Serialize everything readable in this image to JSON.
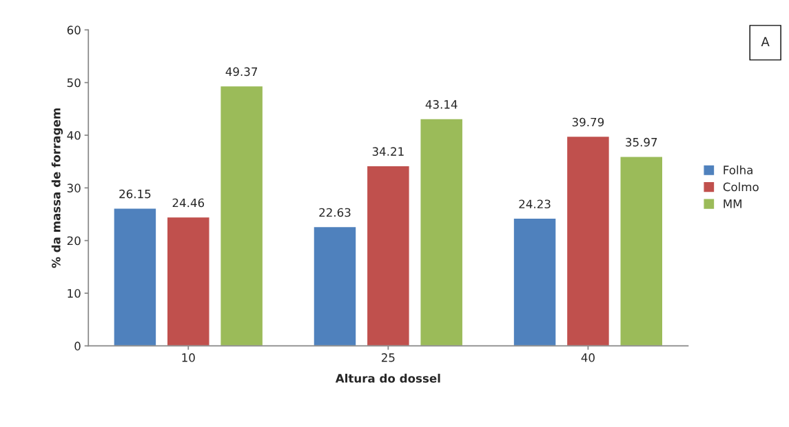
{
  "chart_data": {
    "type": "bar",
    "xlabel": "Altura do dossel",
    "ylabel": "% da massa de forragem",
    "categories": [
      "10",
      "25",
      "40"
    ],
    "series": [
      {
        "name": "Folha",
        "color": "#4f81bd",
        "values": [
          26.15,
          22.63,
          24.23
        ]
      },
      {
        "name": "Colmo",
        "color": "#c0504d",
        "values": [
          24.46,
          34.21,
          39.79
        ]
      },
      {
        "name": "MM",
        "color": "#9bbb59",
        "values": [
          49.37,
          43.14,
          35.97
        ]
      }
    ],
    "ylim": [
      0,
      60
    ],
    "yticks": [
      0,
      10,
      20,
      30,
      40,
      50,
      60
    ],
    "grid": false,
    "legend": "right",
    "data_labels": true,
    "annotations": [
      "A"
    ]
  }
}
